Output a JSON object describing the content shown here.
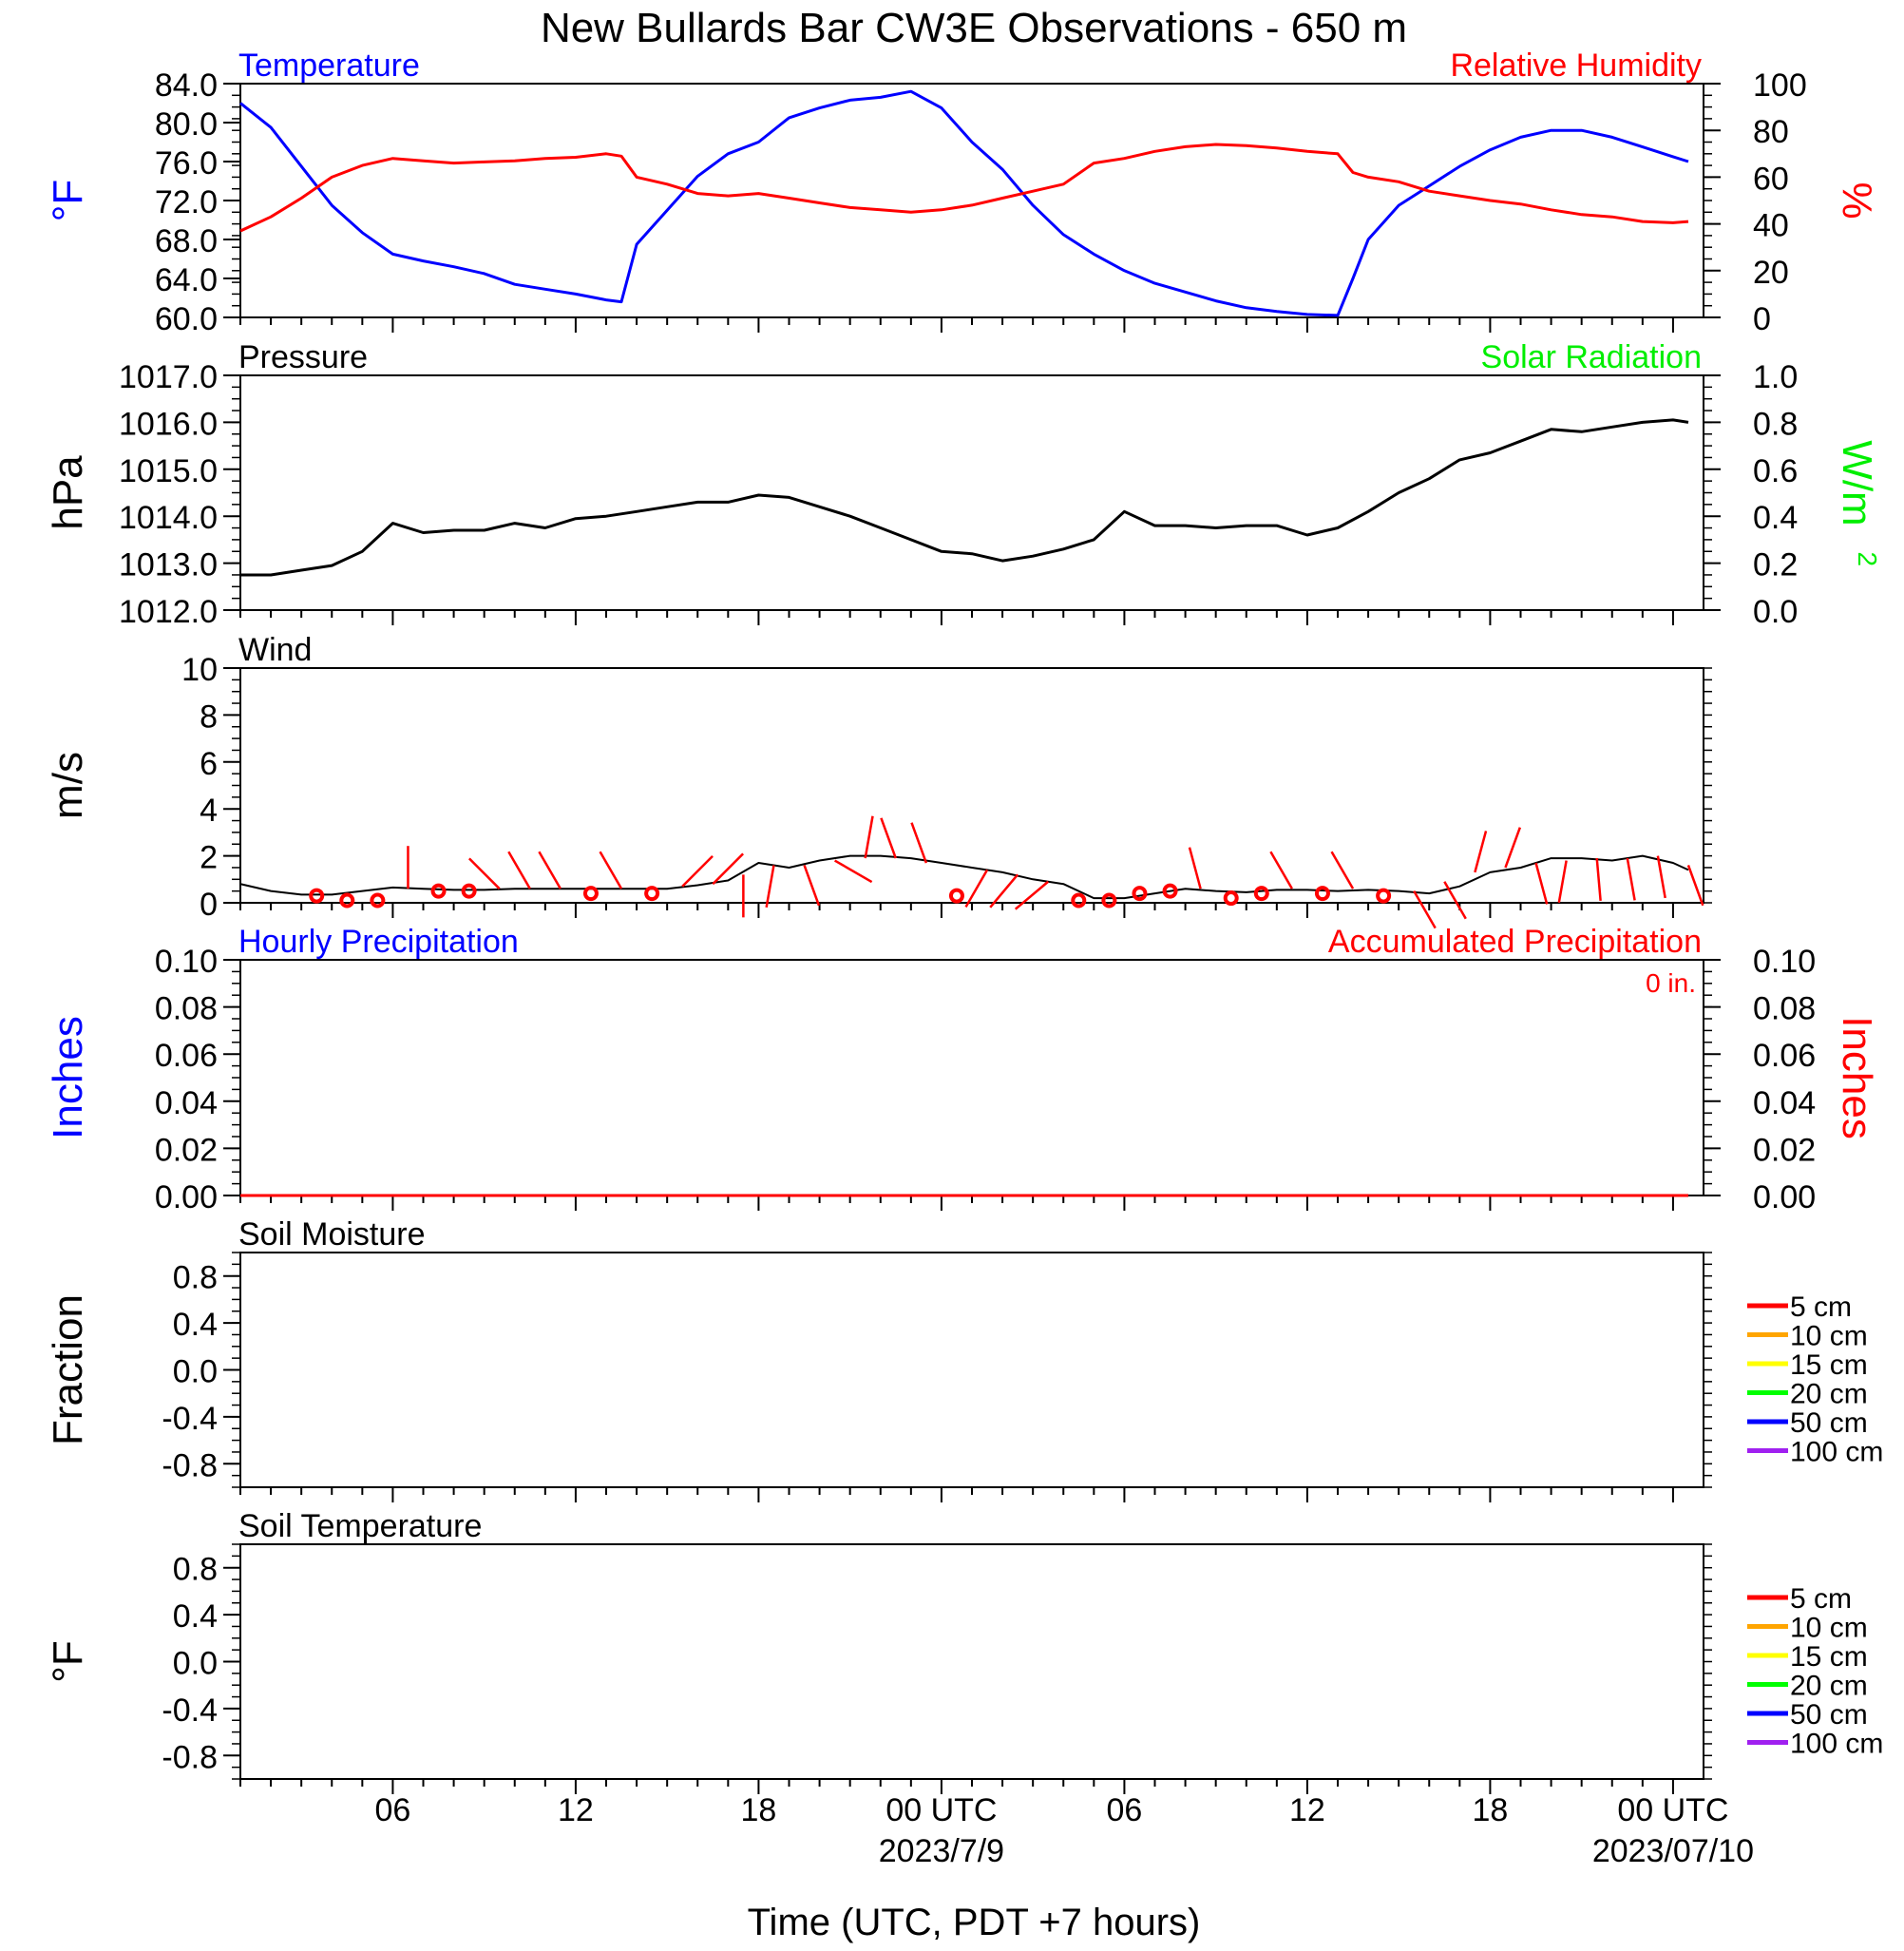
{
  "title": "New Bullards Bar CW3E Observations - 650 m",
  "xlabel": "Time (UTC, PDT +7 hours)",
  "x_tick_labels": [
    "06",
    "12",
    "18",
    "00 UTC",
    "06",
    "12",
    "18",
    "00 UTC"
  ],
  "x_date_labels": [
    "2023/7/9",
    "2023/07/10"
  ],
  "colors": {
    "temperature": "#0000ff",
    "humidity": "#ff0000",
    "pressure": "#000000",
    "solar": "#00ee00",
    "wind_barb": "#ff0000",
    "hourly_precip": "#0000ff",
    "accum_precip": "#ff0000"
  },
  "chart_data": [
    {
      "type": "line",
      "panel": "temperature_humidity",
      "x_unit": "hours since 2023-07-08 01 UTC",
      "title_left": "Temperature",
      "title_right": "Relative Humidity",
      "ylabel_left": "°F",
      "ylabel_right": "%",
      "ylim_left": [
        60,
        84
      ],
      "ylim_right": [
        0,
        100
      ],
      "yticks_left": [
        "84.0",
        "80.0",
        "76.0",
        "72.0",
        "68.0",
        "64.0",
        "60.0"
      ],
      "yticks_right": [
        "100",
        "80",
        "60",
        "40",
        "20",
        "0"
      ],
      "series": [
        {
          "name": "Temperature",
          "axis": "left",
          "x": [
            0,
            1,
            2,
            3,
            4,
            5,
            6,
            7,
            8,
            9,
            10,
            11,
            12,
            12.5,
            13,
            14,
            15,
            16,
            17,
            18,
            19,
            20,
            21,
            22,
            23,
            24,
            25,
            26,
            27,
            28,
            29,
            30,
            31,
            32,
            33,
            34,
            35,
            36,
            36.5,
            37,
            38,
            39,
            40,
            41,
            42,
            43,
            44,
            45,
            46,
            47,
            47.5
          ],
          "y": [
            82,
            79.5,
            75.5,
            71.5,
            68.7,
            66.5,
            65.8,
            65.2,
            64.5,
            63.4,
            62.9,
            62.4,
            61.8,
            61.6,
            67.5,
            71,
            74.5,
            76.8,
            78,
            80.5,
            81.5,
            82.3,
            82.6,
            83.2,
            81.5,
            78,
            75.2,
            71.5,
            68.5,
            66.5,
            64.8,
            63.5,
            62.6,
            61.7,
            61,
            60.6,
            60.3,
            60.2,
            64,
            68,
            71.5,
            73.5,
            75.5,
            77.2,
            78.5,
            79.2,
            79.2,
            78.5,
            77.5,
            76.5,
            76
          ]
        },
        {
          "name": "Relative Humidity",
          "axis": "right",
          "x": [
            0,
            1,
            2,
            3,
            4,
            5,
            6,
            7,
            8,
            9,
            10,
            11,
            12,
            12.5,
            13,
            14,
            15,
            16,
            17,
            18,
            19,
            20,
            21,
            22,
            23,
            24,
            25,
            26,
            27,
            28,
            29,
            30,
            31,
            32,
            33,
            34,
            35,
            36,
            36.5,
            37,
            38,
            39,
            40,
            41,
            42,
            43,
            44,
            45,
            46,
            47,
            47.5
          ],
          "y": [
            37,
            43,
            51,
            60,
            65,
            68,
            67,
            66,
            66.5,
            67,
            68,
            68.5,
            70,
            69,
            60,
            57,
            53,
            52,
            53,
            51,
            49,
            47,
            46,
            45,
            46,
            48,
            51,
            54,
            57,
            66,
            68,
            71,
            73,
            74,
            73.5,
            72.5,
            71,
            70,
            62,
            60,
            58,
            54,
            52,
            50,
            48.5,
            46,
            44,
            43,
            41,
            40.5,
            41
          ]
        }
      ]
    },
    {
      "type": "line",
      "panel": "pressure_solar",
      "x_unit": "hours since 2023-07-08 01 UTC",
      "title_left": "Pressure",
      "title_right": "Solar Radiation",
      "ylabel_left": "hPa",
      "ylabel_right_base": "W/m",
      "ylabel_right_exp": "2",
      "ylim_left": [
        1012,
        1017
      ],
      "ylim_right": [
        0,
        1
      ],
      "yticks_left": [
        "1017.0",
        "1016.0",
        "1015.0",
        "1014.0",
        "1013.0",
        "1012.0"
      ],
      "yticks_right": [
        "1.0",
        "0.8",
        "0.6",
        "0.4",
        "0.2",
        "0.0"
      ],
      "series": [
        {
          "name": "Pressure",
          "axis": "left",
          "x": [
            0,
            1,
            2,
            3,
            4,
            5,
            6,
            7,
            8,
            9,
            10,
            11,
            12,
            13,
            14,
            15,
            16,
            17,
            18,
            19,
            20,
            21,
            22,
            23,
            24,
            25,
            26,
            27,
            28,
            29,
            30,
            31,
            32,
            33,
            34,
            35,
            36,
            37,
            38,
            39,
            40,
            41,
            42,
            43,
            44,
            45,
            46,
            47,
            47.5
          ],
          "y": [
            1012.75,
            1012.75,
            1012.85,
            1012.95,
            1013.25,
            1013.85,
            1013.65,
            1013.7,
            1013.7,
            1013.85,
            1013.75,
            1013.95,
            1014.0,
            1014.1,
            1014.2,
            1014.3,
            1014.3,
            1014.45,
            1014.4,
            1014.2,
            1014.0,
            1013.75,
            1013.5,
            1013.25,
            1013.2,
            1013.05,
            1013.15,
            1013.3,
            1013.5,
            1014.1,
            1013.8,
            1013.8,
            1013.75,
            1013.8,
            1013.8,
            1013.6,
            1013.75,
            1014.1,
            1014.5,
            1014.8,
            1015.2,
            1015.35,
            1015.6,
            1015.85,
            1015.8,
            1015.9,
            1016.0,
            1016.05,
            1016.0
          ]
        },
        {
          "name": "Solar Radiation",
          "axis": "right",
          "x": [],
          "y": []
        }
      ]
    },
    {
      "type": "line",
      "panel": "wind",
      "x_unit": "hours since 2023-07-08 01 UTC",
      "title_left": "Wind",
      "ylabel_left": "m/s",
      "ylim": [
        0,
        10
      ],
      "yticks_left": [
        "10",
        "8",
        "6",
        "4",
        "2",
        "0"
      ],
      "series": [
        {
          "name": "Wind Speed",
          "x": [
            0,
            1,
            2,
            3,
            4,
            5,
            6,
            7,
            8,
            9,
            10,
            11,
            12,
            13,
            14,
            15,
            16,
            17,
            18,
            19,
            20,
            21,
            22,
            23,
            24,
            25,
            26,
            27,
            28,
            29,
            30,
            31,
            32,
            33,
            34,
            35,
            36,
            37,
            38,
            39,
            40,
            41,
            42,
            43,
            44,
            45,
            46,
            47,
            47.5
          ],
          "y": [
            0.8,
            0.5,
            0.35,
            0.35,
            0.5,
            0.65,
            0.6,
            0.55,
            0.55,
            0.6,
            0.6,
            0.6,
            0.6,
            0.6,
            0.6,
            0.75,
            0.95,
            1.7,
            1.5,
            1.8,
            2.0,
            2.0,
            1.9,
            1.7,
            1.5,
            1.3,
            1.0,
            0.8,
            0.2,
            0.2,
            0.4,
            0.6,
            0.5,
            0.45,
            0.55,
            0.55,
            0.5,
            0.55,
            0.5,
            0.4,
            0.7,
            1.3,
            1.5,
            1.9,
            1.9,
            1.8,
            2.0,
            1.7,
            1.4
          ]
        }
      ],
      "barbs": [
        {
          "x": 2,
          "speed": 0.3,
          "calm": true
        },
        {
          "x": 3,
          "speed": 0.1,
          "calm": true
        },
        {
          "x": 4,
          "speed": 0.1,
          "calm": true
        },
        {
          "x": 5,
          "speed": 0.6,
          "dir": 0
        },
        {
          "x": 6,
          "speed": 0.5,
          "calm": true
        },
        {
          "x": 7,
          "speed": 0.5,
          "calm": true
        },
        {
          "x": 8,
          "speed": 0.6,
          "dir": 315
        },
        {
          "x": 9,
          "speed": 0.6,
          "dir": 330
        },
        {
          "x": 10,
          "speed": 0.6,
          "dir": 330
        },
        {
          "x": 11,
          "speed": 0.4,
          "calm": true
        },
        {
          "x": 12,
          "speed": 0.6,
          "dir": 330
        },
        {
          "x": 13,
          "speed": 0.4,
          "calm": true
        },
        {
          "x": 14,
          "speed": 0.7,
          "dir": 45
        },
        {
          "x": 15,
          "speed": 0.8,
          "dir": 45
        },
        {
          "x": 16,
          "speed": 1.2,
          "dir": 180
        },
        {
          "x": 17,
          "speed": 1.6,
          "dir": 190
        },
        {
          "x": 18,
          "speed": 1.6,
          "dir": 160
        },
        {
          "x": 19,
          "speed": 1.8,
          "dir": 120
        },
        {
          "x": 20,
          "speed": 1.9,
          "dir": 10
        },
        {
          "x": 21,
          "speed": 1.9,
          "dir": 340
        },
        {
          "x": 22,
          "speed": 1.7,
          "dir": 340
        },
        {
          "x": 23,
          "speed": 0.3,
          "calm": true
        },
        {
          "x": 24,
          "speed": 1.4,
          "dir": 210
        },
        {
          "x": 25,
          "speed": 1.2,
          "dir": 220
        },
        {
          "x": 26,
          "speed": 0.9,
          "dir": 230
        },
        {
          "x": 27,
          "speed": 0.1,
          "calm": true
        },
        {
          "x": 28,
          "speed": 0.1,
          "calm": true
        },
        {
          "x": 29,
          "speed": 0.4,
          "calm": true
        },
        {
          "x": 30,
          "speed": 0.5,
          "calm": true
        },
        {
          "x": 31,
          "speed": 0.6,
          "dir": 345
        },
        {
          "x": 32,
          "speed": 0.2,
          "calm": true
        },
        {
          "x": 33,
          "speed": 0.4,
          "calm": true
        },
        {
          "x": 34,
          "speed": 0.6,
          "dir": 330
        },
        {
          "x": 35,
          "speed": 0.4,
          "calm": true
        },
        {
          "x": 36,
          "speed": 0.6,
          "dir": 330
        },
        {
          "x": 37,
          "speed": 0.3,
          "calm": true
        },
        {
          "x": 38,
          "speed": 0.5,
          "dir": 150
        },
        {
          "x": 39,
          "speed": 0.9,
          "dir": 150
        },
        {
          "x": 40,
          "speed": 1.3,
          "dir": 15
        },
        {
          "x": 41,
          "speed": 1.5,
          "dir": 20
        },
        {
          "x": 42,
          "speed": 1.7,
          "dir": 165
        },
        {
          "x": 43,
          "speed": 1.8,
          "dir": 190
        },
        {
          "x": 44,
          "speed": 1.9,
          "dir": 175
        },
        {
          "x": 45,
          "speed": 1.9,
          "dir": 170
        },
        {
          "x": 46,
          "speed": 2.0,
          "dir": 170
        },
        {
          "x": 47,
          "speed": 1.6,
          "dir": 160
        }
      ]
    },
    {
      "type": "line",
      "panel": "precipitation",
      "x_unit": "hours since 2023-07-08 01 UTC",
      "title_left": "Hourly Precipitation",
      "title_right": "Accumulated Precipitation",
      "accum_total": "0 in.",
      "ylabel_left": "Inches",
      "ylabel_right": "Inches",
      "ylim": [
        0,
        0.1
      ],
      "yticks_left": [
        "0.10",
        "0.08",
        "0.06",
        "0.04",
        "0.02",
        "0.00"
      ],
      "yticks_right": [
        "0.10",
        "0.08",
        "0.06",
        "0.04",
        "0.02",
        "0.00"
      ],
      "series": [
        {
          "name": "Hourly Precipitation",
          "x": [
            0,
            47.5
          ],
          "y": [
            0,
            0
          ]
        },
        {
          "name": "Accumulated Precipitation",
          "x": [
            0,
            47.5
          ],
          "y": [
            0,
            0
          ]
        }
      ]
    },
    {
      "type": "line",
      "panel": "soil_moisture",
      "title_left": "Soil Moisture",
      "ylabel_left": "Fraction",
      "ylim": [
        -1,
        1
      ],
      "yticks_left": [
        "0.8",
        "0.4",
        "0.0",
        "-0.4",
        "-0.8"
      ],
      "legend": [
        {
          "label": "5 cm",
          "color": "#ff0000"
        },
        {
          "label": "10 cm",
          "color": "#ffa500"
        },
        {
          "label": "15 cm",
          "color": "#ffff00"
        },
        {
          "label": "20 cm",
          "color": "#00ff00"
        },
        {
          "label": "50 cm",
          "color": "#0000ff"
        },
        {
          "label": "100 cm",
          "color": "#a020f0"
        }
      ],
      "series": []
    },
    {
      "type": "line",
      "panel": "soil_temperature",
      "title_left": "Soil Temperature",
      "ylabel_left": "°F",
      "ylim": [
        -1,
        1
      ],
      "yticks_left": [
        "0.8",
        "0.4",
        "0.0",
        "-0.4",
        "-0.8"
      ],
      "legend": [
        {
          "label": "5 cm",
          "color": "#ff0000"
        },
        {
          "label": "10 cm",
          "color": "#ffa500"
        },
        {
          "label": "15 cm",
          "color": "#ffff00"
        },
        {
          "label": "20 cm",
          "color": "#00ff00"
        },
        {
          "label": "50 cm",
          "color": "#0000ff"
        },
        {
          "label": "100 cm",
          "color": "#a020f0"
        }
      ],
      "series": []
    }
  ]
}
